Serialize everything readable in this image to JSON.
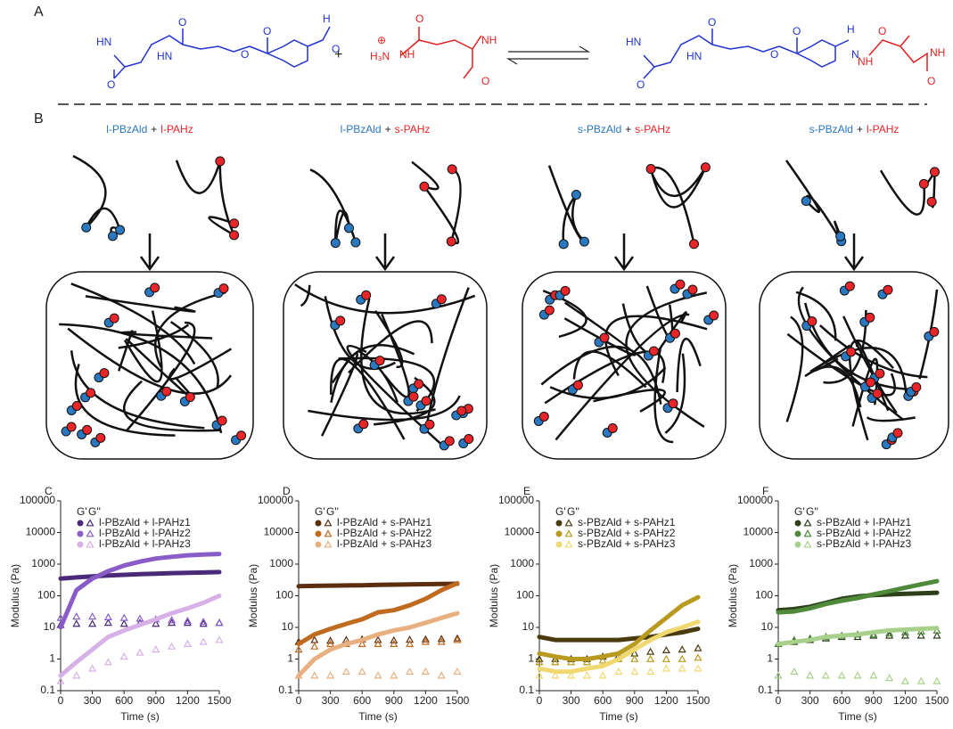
{
  "schematic": {
    "reaction": {
      "label": "A",
      "plus": "+",
      "reactant1": [
        "HN",
        "O",
        "O",
        "HN",
        "O",
        "O",
        "H",
        "O"
      ],
      "reactant2": [
        "⊕",
        "H₃N",
        "NH",
        "O",
        "NH",
        "O"
      ],
      "product": [
        "HN",
        "O",
        "O",
        "HN",
        "O",
        "O",
        "H",
        "N",
        "NH",
        "O",
        "NH",
        "O"
      ]
    },
    "label": "B",
    "panels": [
      {
        "left": "l-PBzAld",
        "plus": "+",
        "right": "l-PAHz"
      },
      {
        "left": "l-PBzAld",
        "plus": "+",
        "right": "s-PAHz"
      },
      {
        "left": "s-PBzAld",
        "plus": "+",
        "right": "s-PAHz"
      },
      {
        "left": "s-PBzAld",
        "plus": "+",
        "right": "l-PAHz"
      }
    ]
  },
  "chart_data": [
    {
      "type": "line",
      "label": "C",
      "x_label": "Time (s)",
      "y_label": "Modulus (Pa)",
      "legend_header": [
        "G'",
        "G''"
      ],
      "log_y": true,
      "x": [
        0,
        150,
        300,
        450,
        600,
        750,
        900,
        1050,
        1200,
        1350,
        1500
      ],
      "xlim": [
        0,
        1500
      ],
      "xticks": [
        0,
        300,
        600,
        900,
        1200,
        1500
      ],
      "ylim": [
        0.1,
        100000
      ],
      "yticks": [
        0.1,
        1,
        10,
        100,
        1000,
        10000,
        100000
      ],
      "series": [
        {
          "name": "l-PBzAld + l-PAHz1",
          "color": "#4b2a7a",
          "g_prime": [
            350,
            380,
            410,
            440,
            460,
            480,
            500,
            520,
            530,
            545,
            560
          ],
          "g_double_prime": [
            12,
            13,
            13,
            14,
            13,
            14,
            13,
            14,
            14,
            13,
            14
          ]
        },
        {
          "name": "l-PBzAld + l-PAHz2",
          "color": "#8a5cc7",
          "g_prime": [
            10,
            150,
            350,
            600,
            900,
            1200,
            1500,
            1700,
            1900,
            2000,
            2100
          ],
          "g_double_prime": [
            20,
            22,
            22,
            21,
            20,
            19,
            18,
            17,
            16,
            15,
            14
          ]
        },
        {
          "name": "l-PBzAld + l-PAHz3",
          "color": "#d6b0e6",
          "g_prime": [
            0.3,
            0.8,
            2,
            5,
            8,
            12,
            18,
            28,
            40,
            60,
            100
          ],
          "g_double_prime": [
            0.2,
            0.3,
            0.5,
            0.8,
            1.2,
            1.6,
            2,
            2.5,
            3,
            3.5,
            4
          ]
        }
      ]
    },
    {
      "type": "line",
      "label": "D",
      "x_label": "Time (s)",
      "y_label": "Modulus (Pa)",
      "legend_header": [
        "G'",
        "G''"
      ],
      "log_y": true,
      "x": [
        0,
        150,
        300,
        450,
        600,
        750,
        900,
        1050,
        1200,
        1350,
        1500
      ],
      "xlim": [
        0,
        1500
      ],
      "xticks": [
        0,
        300,
        600,
        900,
        1200,
        1500
      ],
      "ylim": [
        0.1,
        100000
      ],
      "yticks": [
        0.1,
        1,
        10,
        100,
        1000,
        10000,
        100000
      ],
      "series": [
        {
          "name": "l-PBzAld + s-PAHz1",
          "color": "#5a2e0e",
          "g_prime": [
            200,
            205,
            210,
            212,
            215,
            220,
            225,
            228,
            232,
            236,
            240
          ],
          "g_double_prime": [
            3.5,
            4,
            3.8,
            4,
            4.2,
            4,
            3.9,
            4.1,
            4.2,
            4.3,
            4.5
          ]
        },
        {
          "name": "l-PBzAld + s-PAHz2",
          "color": "#c06a20",
          "g_prime": [
            3,
            6,
            9,
            13,
            18,
            30,
            35,
            50,
            80,
            150,
            250
          ],
          "g_double_prime": [
            2,
            2.5,
            3,
            3,
            3,
            3,
            3,
            3,
            3.5,
            3.5,
            4
          ]
        },
        {
          "name": "l-PBzAld + s-PAHz3",
          "color": "#e8b080",
          "g_prime": [
            0.3,
            1,
            2,
            3,
            4,
            6,
            8,
            10,
            14,
            20,
            28
          ],
          "g_double_prime": [
            0.3,
            0.3,
            0.3,
            0.4,
            0.4,
            0.3,
            0.3,
            0.4,
            0.4,
            0.3,
            0.4
          ]
        }
      ]
    },
    {
      "type": "line",
      "label": "E",
      "x_label": "Time (s)",
      "y_label": "Modulus (Pa)",
      "legend_header": [
        "G'",
        "G''"
      ],
      "log_y": true,
      "x": [
        0,
        150,
        300,
        450,
        600,
        750,
        900,
        1050,
        1200,
        1350,
        1500
      ],
      "xlim": [
        0,
        1500
      ],
      "xticks": [
        0,
        300,
        600,
        900,
        1200,
        1500
      ],
      "ylim": [
        0.1,
        100000
      ],
      "yticks": [
        0.1,
        1,
        10,
        100,
        1000,
        10000,
        100000
      ],
      "series": [
        {
          "name": "s-PBzAld + s-PAHz1",
          "color": "#4a3a10",
          "g_prime": [
            5,
            4,
            4,
            4,
            4,
            4,
            4.5,
            5,
            6,
            7,
            9
          ],
          "g_double_prime": [
            1,
            1,
            1,
            1,
            1.2,
            1.3,
            1.5,
            1.7,
            1.9,
            2,
            2.2
          ]
        },
        {
          "name": "s-PBzAld + s-PAHz2",
          "color": "#b89a20",
          "g_prime": [
            1.5,
            1.2,
            1,
            1,
            1.2,
            1.5,
            3,
            8,
            20,
            50,
            90
          ],
          "g_double_prime": [
            0.8,
            0.8,
            0.8,
            0.8,
            0.9,
            1,
            1,
            1,
            1,
            1,
            1.1
          ]
        },
        {
          "name": "s-PBzAld + s-PAHz3",
          "color": "#f0d870",
          "g_prime": [
            0.5,
            0.4,
            0.4,
            0.5,
            0.6,
            1,
            2,
            4,
            7,
            10,
            15
          ],
          "g_double_prime": [
            0.3,
            0.3,
            0.3,
            0.3,
            0.3,
            0.4,
            0.4,
            0.4,
            0.5,
            0.5,
            0.5
          ]
        }
      ]
    },
    {
      "type": "line",
      "label": "F",
      "x_label": "Time (s)",
      "y_label": "Modulus (Pa)",
      "legend_header": [
        "G'",
        "G''"
      ],
      "log_y": true,
      "x": [
        0,
        150,
        300,
        450,
        600,
        750,
        900,
        1050,
        1200,
        1350,
        1500
      ],
      "xlim": [
        0,
        1500
      ],
      "xticks": [
        0,
        300,
        600,
        900,
        1200,
        1500
      ],
      "ylim": [
        0.1,
        100000
      ],
      "yticks": [
        0.1,
        1,
        10,
        100,
        1000,
        10000,
        100000
      ],
      "series": [
        {
          "name": "s-PBzAld + l-PAHz1",
          "color": "#2c3f1a",
          "g_prime": [
            35,
            38,
            45,
            60,
            80,
            95,
            105,
            110,
            115,
            120,
            125
          ],
          "g_double_prime": [
            3,
            3.5,
            4,
            4.5,
            5,
            5,
            5.5,
            5.5,
            5.5,
            5.5,
            5.5
          ]
        },
        {
          "name": "s-PBzAld + l-PAHz2",
          "color": "#4e8a3a",
          "g_prime": [
            30,
            32,
            40,
            55,
            70,
            85,
            110,
            140,
            180,
            230,
            290
          ],
          "g_double_prime": [
            3,
            4,
            4.5,
            5,
            5.5,
            6,
            6,
            6.5,
            7,
            7.5,
            8
          ]
        },
        {
          "name": "s-PBzAld + l-PAHz3",
          "color": "#a8d08a",
          "g_prime": [
            3,
            3.5,
            4,
            5,
            5.5,
            6,
            7,
            8,
            8.5,
            9,
            9.5
          ],
          "g_double_prime": [
            0.3,
            0.4,
            0.3,
            0.3,
            0.3,
            0.3,
            0.3,
            0.25,
            0.2,
            0.2,
            0.2
          ]
        }
      ]
    }
  ]
}
